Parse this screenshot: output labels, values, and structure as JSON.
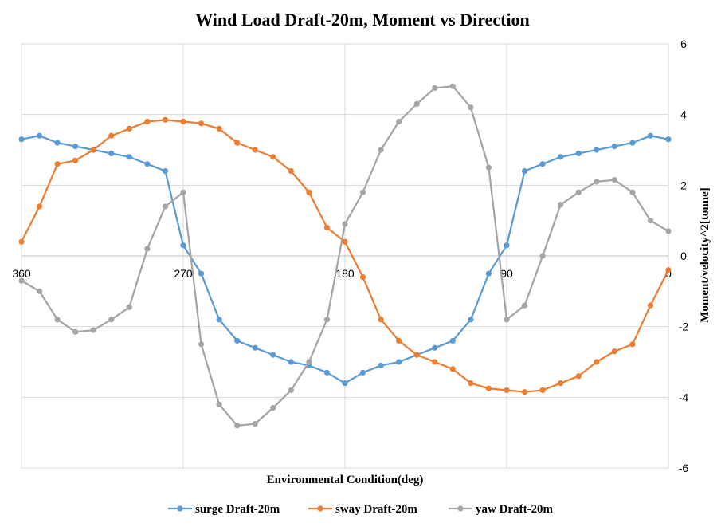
{
  "chart_data": {
    "type": "line",
    "title": "Wind Load Draft-20m, Moment vs Direction",
    "xlabel": "Environmental Condition(deg)",
    "ylabel": "Moment/velocity^2[tonne]",
    "xlim": [
      360,
      0
    ],
    "ylim": [
      -6,
      6
    ],
    "x_ticks": [
      360,
      270,
      180,
      90,
      0
    ],
    "y_ticks": [
      -6,
      -4,
      -2,
      0,
      2,
      4,
      6
    ],
    "grid": true,
    "legend_position": "bottom",
    "x": [
      360,
      350,
      340,
      330,
      320,
      310,
      300,
      290,
      280,
      270,
      260,
      250,
      240,
      230,
      220,
      210,
      200,
      190,
      180,
      170,
      160,
      150,
      140,
      130,
      120,
      110,
      100,
      90,
      80,
      70,
      60,
      50,
      40,
      30,
      20,
      10,
      0
    ],
    "series": [
      {
        "name": "surge Draft-20m",
        "color": "#5b9bd5",
        "values": [
          3.3,
          3.4,
          3.2,
          3.1,
          3.0,
          2.9,
          2.8,
          2.6,
          2.4,
          0.3,
          -0.5,
          -1.8,
          -2.4,
          -2.6,
          -2.8,
          -3.0,
          -3.1,
          -3.3,
          -3.6,
          -3.3,
          -3.1,
          -3.0,
          -2.8,
          -2.6,
          -2.4,
          -1.8,
          -0.5,
          0.3,
          2.4,
          2.6,
          2.8,
          2.9,
          3.0,
          3.1,
          3.2,
          3.4,
          3.3
        ]
      },
      {
        "name": "sway Draft-20m",
        "color": "#ed7d31",
        "values": [
          0.4,
          1.4,
          2.6,
          2.7,
          3.0,
          3.4,
          3.6,
          3.8,
          3.85,
          3.8,
          3.75,
          3.6,
          3.2,
          3.0,
          2.8,
          2.4,
          1.8,
          0.8,
          0.4,
          -0.6,
          -1.8,
          -2.4,
          -2.8,
          -3.0,
          -3.2,
          -3.6,
          -3.75,
          -3.8,
          -3.85,
          -3.8,
          -3.6,
          -3.4,
          -3.0,
          -2.7,
          -2.5,
          -1.4,
          -0.4
        ]
      },
      {
        "name": "yaw Draft-20m",
        "color": "#a5a5a5",
        "values": [
          -0.7,
          -1.0,
          -1.8,
          -2.15,
          -2.1,
          -1.8,
          -1.45,
          0.2,
          1.4,
          1.8,
          -2.5,
          -4.2,
          -4.8,
          -4.75,
          -4.3,
          -3.8,
          -3.0,
          -1.8,
          0.9,
          1.8,
          3.0,
          3.8,
          4.3,
          4.75,
          4.8,
          4.2,
          2.5,
          -1.8,
          -1.4,
          0.0,
          1.45,
          1.8,
          2.1,
          2.15,
          1.8,
          1.0,
          0.7
        ]
      }
    ]
  }
}
